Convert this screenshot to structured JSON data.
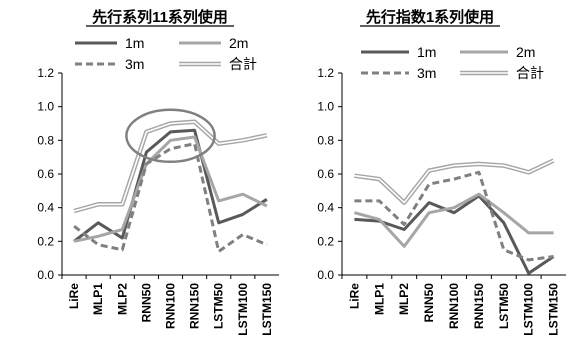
{
  "chart_data": [
    {
      "type": "line",
      "title": "先行系列11系列使用",
      "categories": [
        "LiRe",
        "MLP1",
        "MLP2",
        "RNN50",
        "RNN100",
        "RNN150",
        "LSTM50",
        "LSTM100",
        "LSTM150"
      ],
      "ylim": [
        0,
        1.2
      ],
      "yticks": [
        "0.0",
        "0.2",
        "0.4",
        "0.6",
        "0.8",
        "1.0",
        "1.2"
      ],
      "grid": false,
      "legend": "top",
      "series": [
        {
          "name": "1m",
          "values": [
            0.2,
            0.31,
            0.22,
            0.73,
            0.85,
            0.86,
            0.31,
            0.36,
            0.45
          ],
          "color": "#595959",
          "style": "solid"
        },
        {
          "name": "2m",
          "values": [
            0.2,
            0.23,
            0.27,
            0.66,
            0.8,
            0.82,
            0.44,
            0.48,
            0.41
          ],
          "color": "#a6a6a6",
          "style": "solid"
        },
        {
          "name": "3m",
          "values": [
            0.29,
            0.18,
            0.15,
            0.66,
            0.75,
            0.78,
            0.14,
            0.24,
            0.18
          ],
          "color": "#808080",
          "style": "dashed"
        },
        {
          "name": "合計",
          "values": [
            0.38,
            0.42,
            0.42,
            0.85,
            0.9,
            0.91,
            0.78,
            0.8,
            0.83
          ],
          "color": "#a6a6a6",
          "style": "double"
        }
      ],
      "annotation": {
        "shape": "ellipse",
        "around": [
          "RNN50",
          "RNN100",
          "RNN150"
        ],
        "color": "#808080"
      }
    },
    {
      "type": "line",
      "title": "先行指数1系列使用",
      "categories": [
        "LiRe",
        "MLP1",
        "MLP2",
        "RNN50",
        "RNN100",
        "RNN150",
        "LSTM50",
        "LSTM100",
        "LSTM150"
      ],
      "ylim": [
        0,
        1.2
      ],
      "yticks": [
        "0.0",
        "0.2",
        "0.4",
        "0.6",
        "0.8",
        "1.0",
        "1.2"
      ],
      "grid": false,
      "legend": "top",
      "series": [
        {
          "name": "1m",
          "values": [
            0.33,
            0.32,
            0.27,
            0.43,
            0.37,
            0.47,
            0.31,
            0.01,
            0.11
          ],
          "color": "#595959",
          "style": "solid"
        },
        {
          "name": "2m",
          "values": [
            0.37,
            0.33,
            0.17,
            0.37,
            0.4,
            0.48,
            0.37,
            0.25,
            0.25
          ],
          "color": "#a6a6a6",
          "style": "solid"
        },
        {
          "name": "3m",
          "values": [
            0.44,
            0.44,
            0.3,
            0.54,
            0.57,
            0.61,
            0.15,
            0.09,
            0.11
          ],
          "color": "#808080",
          "style": "dashed"
        },
        {
          "name": "合計",
          "values": [
            0.59,
            0.57,
            0.43,
            0.62,
            0.65,
            0.66,
            0.65,
            0.61,
            0.68
          ],
          "color": "#a6a6a6",
          "style": "double"
        }
      ]
    }
  ]
}
